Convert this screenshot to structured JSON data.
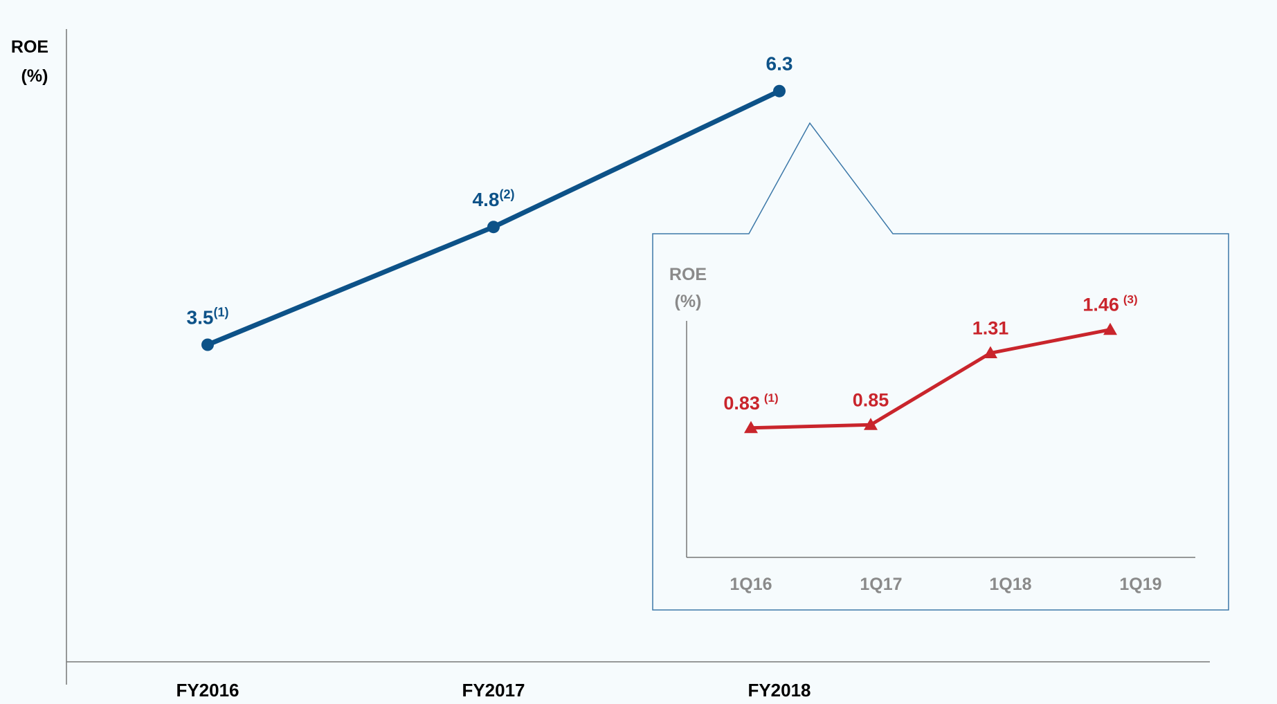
{
  "chart_data": [
    {
      "type": "line",
      "ylabel_line1": "ROE",
      "ylabel_line2": "(%)",
      "xlabel": "",
      "categories": [
        "FY2016",
        "FY2017",
        "FY2018"
      ],
      "series": [
        {
          "values": [
            3.5,
            4.8,
            6.3
          ],
          "labels": [
            "3.5",
            "4.8",
            "6.3"
          ],
          "footnotes": [
            "(1)",
            "(2)",
            ""
          ]
        }
      ],
      "ylim": [
        0,
        7
      ],
      "grid": false,
      "legend": "none",
      "color": "#0d5288"
    },
    {
      "type": "line",
      "ylabel_line1": "ROE",
      "ylabel_line2": "(%)",
      "xlabel": "",
      "categories": [
        "1Q16",
        "1Q17",
        "1Q18",
        "1Q19"
      ],
      "series": [
        {
          "values": [
            0.83,
            0.85,
            1.31,
            1.46
          ],
          "labels": [
            "0.83",
            "0.85",
            "1.31",
            "1.46"
          ],
          "footnotes": [
            "(1)",
            "",
            "",
            "(3)"
          ]
        }
      ],
      "ylim": [
        0,
        1.8
      ],
      "grid": false,
      "legend": "none",
      "color": "#c9252c",
      "inset_of": "FY2018"
    }
  ],
  "colors": {
    "axis": "#777777",
    "axis_text": "#8a8a8a",
    "inset_border": "#3c78a8",
    "background": "#f6fbfd"
  }
}
